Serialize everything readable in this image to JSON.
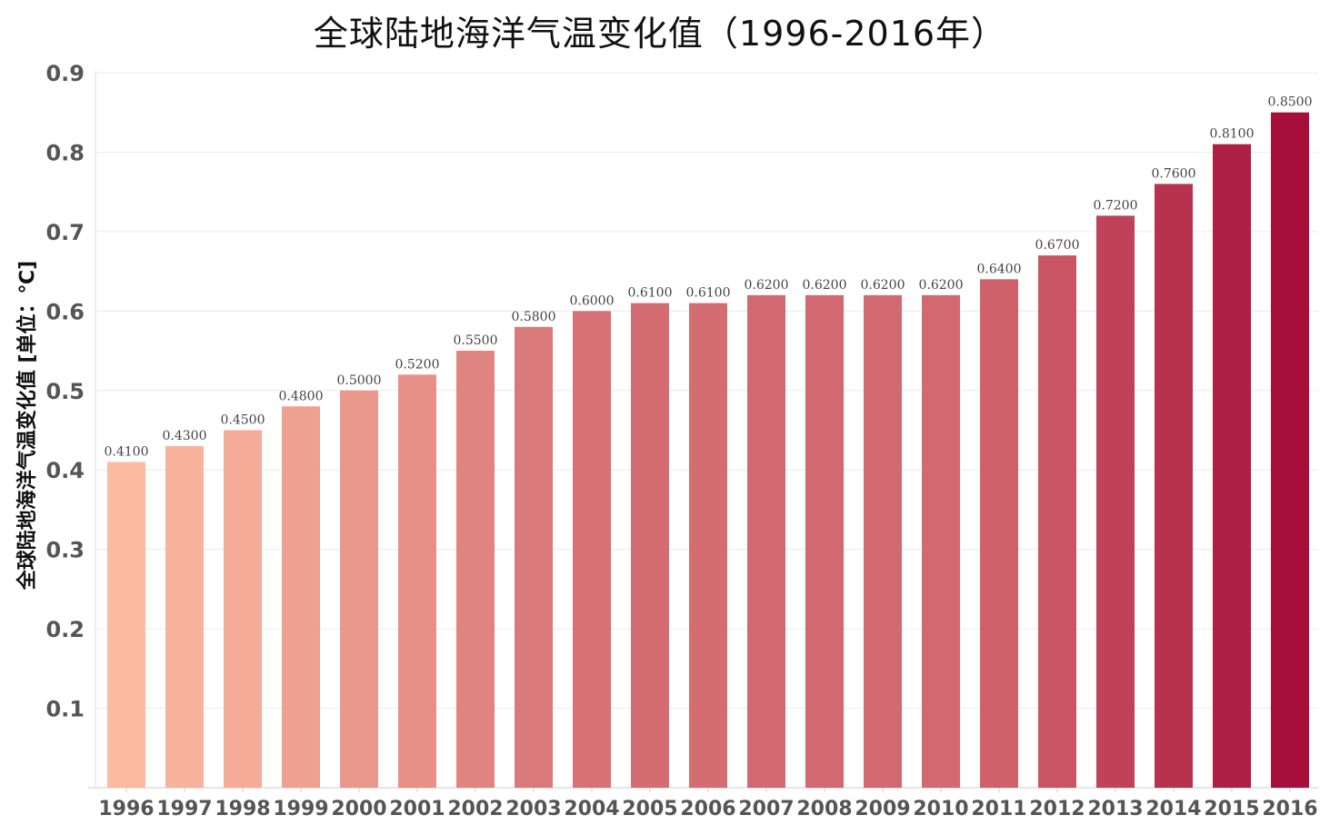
{
  "chart_data": {
    "type": "bar",
    "title": "全球陆地海洋气温变化值（1996-2016年）",
    "xlabel": "",
    "ylabel": "全球陆地海洋气温变化值 [单位：℃]",
    "categories": [
      "1996",
      "1997",
      "1998",
      "1999",
      "2000",
      "2001",
      "2002",
      "2003",
      "2004",
      "2005",
      "2006",
      "2007",
      "2008",
      "2009",
      "2010",
      "2011",
      "2012",
      "2013",
      "2014",
      "2015",
      "2016"
    ],
    "values": [
      0.41,
      0.43,
      0.45,
      0.48,
      0.5,
      0.52,
      0.55,
      0.58,
      0.6,
      0.61,
      0.61,
      0.62,
      0.62,
      0.62,
      0.62,
      0.64,
      0.67,
      0.72,
      0.76,
      0.81,
      0.85
    ],
    "value_labels": [
      "0.4100",
      "0.4300",
      "0.4500",
      "0.4800",
      "0.5000",
      "0.5200",
      "0.5500",
      "0.5800",
      "0.6000",
      "0.6100",
      "0.6100",
      "0.6200",
      "0.6200",
      "0.6200",
      "0.6200",
      "0.6400",
      "0.6700",
      "0.7200",
      "0.7600",
      "0.8100",
      "0.8500"
    ],
    "yticks": [
      "0.1",
      "0.2",
      "0.3",
      "0.4",
      "0.5",
      "0.6",
      "0.7",
      "0.8",
      "0.9"
    ],
    "ylim": [
      0,
      0.9
    ],
    "grid": true,
    "color_range": [
      "#fcbba1",
      "#a50f3a"
    ]
  }
}
